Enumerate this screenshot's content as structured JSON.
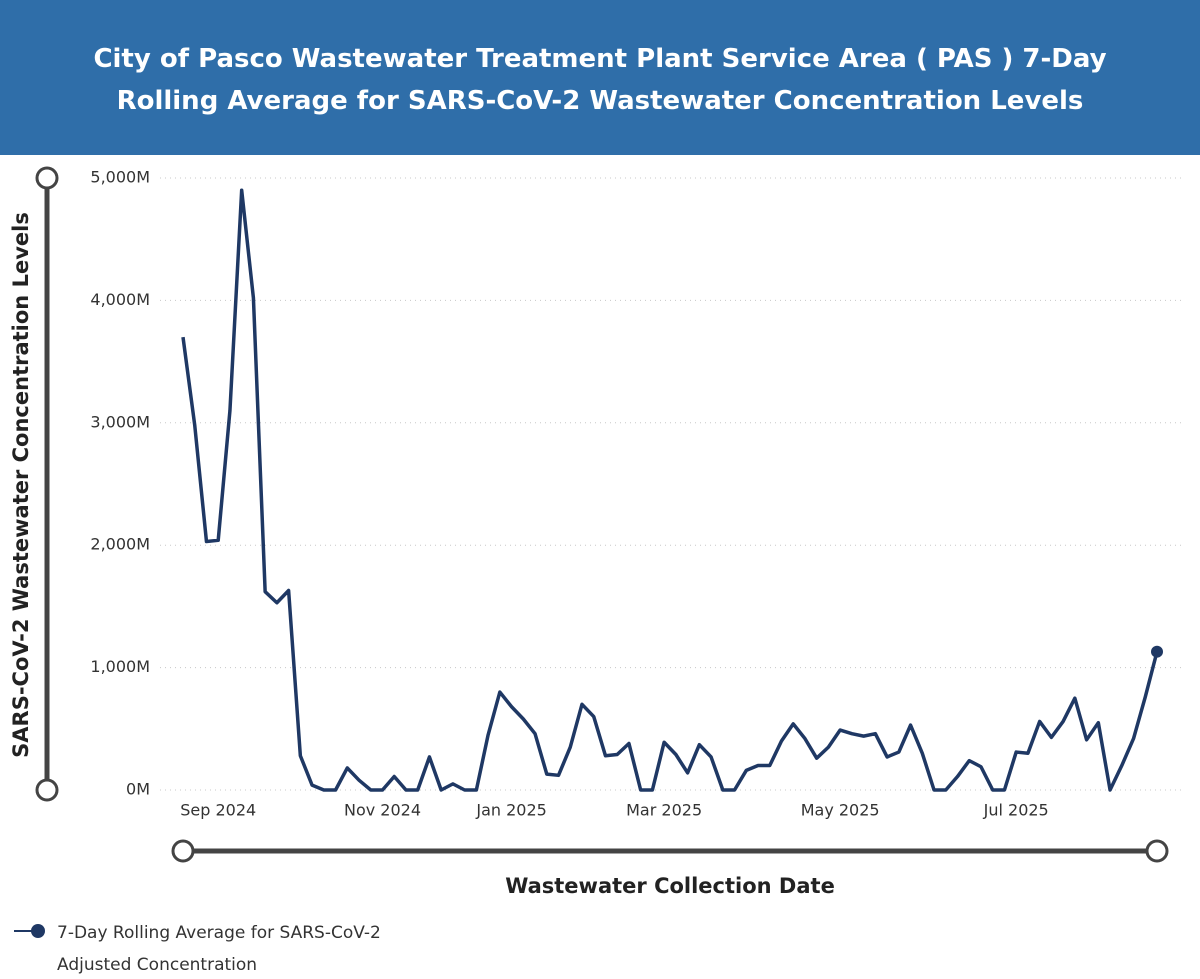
{
  "chart_data": {
    "type": "line",
    "title": "City of Pasco Wastewater Treatment Plant Service Area ( PAS ) 7-Day Rolling Average for SARS-CoV-2 Wastewater Concentration Levels",
    "x_label": "Wastewater Collection Date",
    "y_label": "SARS-CoV-2 Wastewater Concentration Levels",
    "categories": [
      null,
      null,
      null,
      "Sep 2024",
      null,
      null,
      null,
      null,
      null,
      null,
      null,
      null,
      null,
      null,
      null,
      null,
      null,
      "Nov 2024",
      null,
      null,
      null,
      null,
      null,
      null,
      null,
      null,
      null,
      null,
      "Jan 2025",
      null,
      null,
      null,
      null,
      null,
      null,
      null,
      null,
      null,
      null,
      null,
      null,
      "Mar 2025",
      null,
      null,
      null,
      null,
      null,
      null,
      null,
      null,
      null,
      null,
      null,
      null,
      null,
      null,
      "May 2025",
      null,
      null,
      null,
      null,
      null,
      null,
      null,
      null,
      null,
      null,
      null,
      null,
      null,
      null,
      "Jul 2025",
      null,
      null,
      null,
      null,
      null,
      null,
      null,
      null,
      null,
      null,
      null,
      null
    ],
    "series": [
      {
        "name": "7-Day Rolling Average for SARS-CoV-2 Adjusted Concentration",
        "color": "#1f3864",
        "values": [
          3700000000,
          2980000000,
          2030000000,
          2040000000,
          3100000000,
          4900000000,
          4020000000,
          1620000000,
          1530000000,
          1630000000,
          280000000,
          40000000,
          0,
          0,
          180000000,
          80000000,
          0,
          0,
          110000000,
          0,
          0,
          270000000,
          0,
          50000000,
          0,
          0,
          450000000,
          800000000,
          680000000,
          580000000,
          460000000,
          130000000,
          120000000,
          350000000,
          700000000,
          600000000,
          280000000,
          290000000,
          380000000,
          0,
          0,
          390000000,
          290000000,
          140000000,
          370000000,
          270000000,
          0,
          0,
          160000000,
          200000000,
          200000000,
          400000000,
          540000000,
          420000000,
          260000000,
          350000000,
          490000000,
          460000000,
          440000000,
          460000000,
          270000000,
          310000000,
          530000000,
          300000000,
          0,
          0,
          110000000,
          240000000,
          190000000,
          0,
          0,
          310000000,
          300000000,
          560000000,
          430000000,
          560000000,
          750000000,
          410000000,
          550000000,
          0,
          200000000,
          420000000,
          760000000,
          1130000000
        ]
      }
    ],
    "ylim": [
      0,
      5000000000
    ],
    "yticks": [
      {
        "value": 0,
        "label": "0M"
      },
      {
        "value": 1000000000,
        "label": "1,000M"
      },
      {
        "value": 2000000000,
        "label": "2,000M"
      },
      {
        "value": 3000000000,
        "label": "3,000M"
      },
      {
        "value": 4000000000,
        "label": "4,000M"
      },
      {
        "value": 5000000000,
        "label": "5,000M"
      }
    ],
    "grid": true
  }
}
